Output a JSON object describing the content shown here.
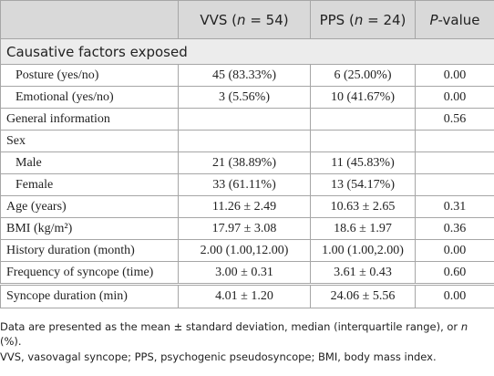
{
  "table": {
    "header": [
      {
        "text": null
      },
      {
        "prefix": "VVS (",
        "italic": "n",
        "suffix": " = 54)"
      },
      {
        "prefix": "PPS (",
        "italic": "n",
        "suffix": " = 24)"
      },
      {
        "italic": "P",
        "suffix": "-value"
      }
    ],
    "rows": [
      {
        "section": "Causative factors exposed"
      },
      {
        "indent": true,
        "cells": [
          "Posture (yes/no)",
          "45 (83.33%)",
          "6 (25.00%)",
          "0.00"
        ]
      },
      {
        "indent": true,
        "cells": [
          "Emotional (yes/no)",
          "3 (5.56%)",
          "10 (41.67%)",
          "0.00"
        ]
      },
      {
        "indent": false,
        "cells": [
          "General information",
          null,
          null,
          "0.56"
        ]
      },
      {
        "indent": false,
        "cells": [
          "Sex",
          null,
          null,
          null
        ]
      },
      {
        "indent": true,
        "cells": [
          "Male",
          "21 (38.89%)",
          "11 (45.83%)",
          null
        ]
      },
      {
        "indent": true,
        "cells": [
          "Female",
          "33 (61.11%)",
          "13 (54.17%)",
          null
        ]
      },
      {
        "indent": false,
        "cells": [
          "Age (years)",
          "11.26 ± 2.49",
          "10.63 ± 2.65",
          "0.31"
        ]
      },
      {
        "indent": false,
        "cells": [
          "BMI (kg/m²)",
          "17.97 ± 3.08",
          "18.6 ± 1.97",
          "0.36"
        ]
      },
      {
        "indent": false,
        "cells": [
          "History duration (month)",
          "2.00 (1.00,12.00)",
          "1.00 (1.00,2.00)",
          "0.00"
        ]
      },
      {
        "indent": false,
        "cells": [
          "Frequency of syncope (time)",
          "3.00 ± 0.31",
          "3.61 ± 0.43",
          "0.60"
        ]
      },
      {
        "indent": false,
        "cells": [
          "Syncope duration (min)",
          "4.01 ± 1.20",
          "24.06 ± 5.56",
          "0.00"
        ]
      }
    ]
  },
  "notes": [
    {
      "prefix": "Data are presented as the mean ± standard deviation, median (interquartile range), or ",
      "italic": "n",
      "suffix": " (%)."
    },
    {
      "prefix": "VVS, vasovagal syncope; PPS, psychogenic pseudosyncope; BMI, body mass index."
    }
  ]
}
